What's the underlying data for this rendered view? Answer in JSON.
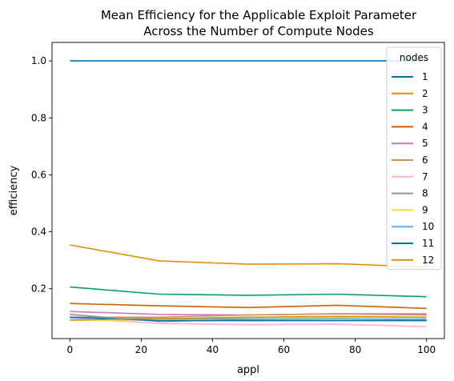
{
  "chart_data": {
    "type": "line",
    "title_line1": "Mean Efficiency for the Applicable Exploit Parameter",
    "title_line2": "Across the Number of Compute Nodes",
    "xlabel": "appl",
    "ylabel": "efficiency",
    "xlim": [
      -5,
      105
    ],
    "ylim": [
      0.025,
      1.065
    ],
    "xticks": [
      0,
      20,
      40,
      60,
      80,
      100
    ],
    "yticks": [
      0.2,
      0.4,
      0.6,
      0.8,
      1.0
    ],
    "x": [
      0,
      25,
      50,
      75,
      100
    ],
    "legend": {
      "title": "nodes",
      "placement": "upper right"
    },
    "series": [
      {
        "name": "1",
        "color": "#0173b2",
        "values": [
          1.0,
          1.0,
          1.0,
          1.0,
          1.0
        ]
      },
      {
        "name": "2",
        "color": "#de8f05",
        "values": [
          0.354,
          0.298,
          0.286,
          0.288,
          0.276
        ]
      },
      {
        "name": "3",
        "color": "#029e73",
        "values": [
          0.206,
          0.181,
          0.177,
          0.181,
          0.172
        ]
      },
      {
        "name": "4",
        "color": "#d55e00",
        "values": [
          0.148,
          0.14,
          0.134,
          0.142,
          0.131
        ]
      },
      {
        "name": "5",
        "color": "#cc78bc",
        "values": [
          0.12,
          0.11,
          0.108,
          0.112,
          0.108
        ]
      },
      {
        "name": "6",
        "color": "#ca9161",
        "values": [
          0.1,
          0.1,
          0.108,
          0.112,
          0.112
        ]
      },
      {
        "name": "7",
        "color": "#fbafe4",
        "values": [
          0.097,
          0.078,
          0.074,
          0.076,
          0.067
        ]
      },
      {
        "name": "8",
        "color": "#949494",
        "values": [
          0.11,
          0.085,
          0.092,
          0.095,
          0.09
        ]
      },
      {
        "name": "9",
        "color": "#ece133",
        "values": [
          0.09,
          0.09,
          0.098,
          0.1,
          0.1
        ]
      },
      {
        "name": "10",
        "color": "#56b4e9",
        "values": [
          0.1,
          0.095,
          0.094,
          0.094,
          0.094
        ]
      },
      {
        "name": "11",
        "color": "#0173b2",
        "values": [
          0.1,
          0.088,
          0.088,
          0.088,
          0.088
        ]
      },
      {
        "name": "12",
        "color": "#de8f05",
        "values": [
          0.09,
          0.095,
          0.1,
          0.103,
          0.1
        ]
      }
    ]
  }
}
